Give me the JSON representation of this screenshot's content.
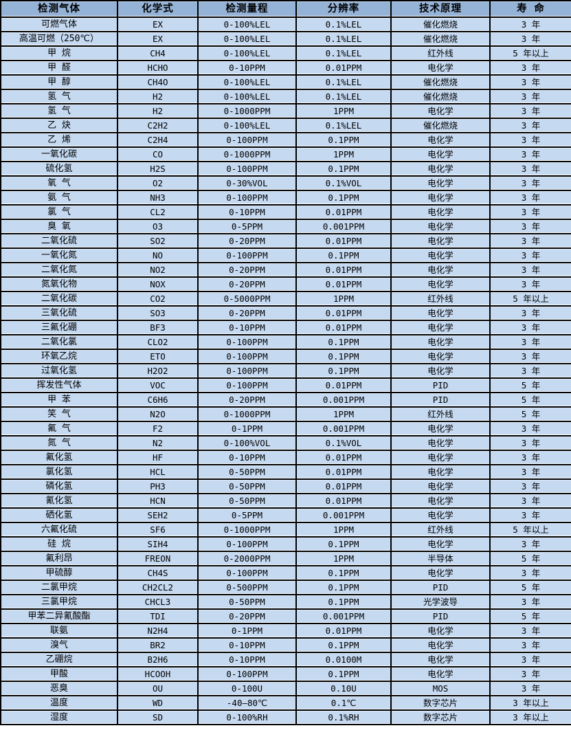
{
  "colors": {
    "header_bg": "#95B3D7",
    "row_bg": "#C5D9F1",
    "border": "#000000",
    "text": "#000000"
  },
  "table": {
    "columns": [
      "检测气体",
      "化学式",
      "检测量程",
      "分辨率",
      "技术原理",
      "寿 命"
    ],
    "rows": [
      [
        "可燃气体",
        "EX",
        "0-100%LEL",
        "0.1%LEL",
        "催化燃烧",
        "3 年"
      ],
      [
        "高温可燃（250℃）",
        "EX",
        "0-100%LEL",
        "0.1%LEL",
        "催化燃烧",
        "3 年"
      ],
      [
        "甲 烷",
        "CH4",
        "0-100%LEL",
        "0.1%LEL",
        "红外线",
        "5 年以上"
      ],
      [
        "甲 醛",
        "HCHO",
        "0-10PPM",
        "0.01PPM",
        "电化学",
        "3 年"
      ],
      [
        "甲 醇",
        "CH4O",
        "0-100%LEL",
        "0.1%LEL",
        "催化燃烧",
        "3 年"
      ],
      [
        "氢 气",
        "H2",
        "0-100%LEL",
        "0.1%LEL",
        "催化燃烧",
        "3 年"
      ],
      [
        "氢 气",
        "H2",
        "0-1000PPM",
        "1PPM",
        "电化学",
        "3 年"
      ],
      [
        "乙 炔",
        "C2H2",
        "0-100%LEL",
        "0.1%LEL",
        "催化燃烧",
        "3 年"
      ],
      [
        "乙 烯",
        "C2H4",
        "0-100PPM",
        "0.1PPM",
        "电化学",
        "3 年"
      ],
      [
        "一氧化碳",
        "CO",
        "0-1000PPM",
        "1PPM",
        "电化学",
        "3 年"
      ],
      [
        "硫化氢",
        "H2S",
        "0-100PPM",
        "0.1PPM",
        "电化学",
        "3 年"
      ],
      [
        "氧 气",
        "O2",
        "0-30%VOL",
        "0.1%VOL",
        "电化学",
        "3 年"
      ],
      [
        "氨 气",
        "NH3",
        "0-100PPM",
        "0.1PPM",
        "电化学",
        "3 年"
      ],
      [
        "氯 气",
        "CL2",
        "0-10PPM",
        "0.01PPM",
        "电化学",
        "3 年"
      ],
      [
        "臭 氧",
        "O3",
        "0-5PPM",
        "0.001PPM",
        "电化学",
        "3 年"
      ],
      [
        "二氧化硫",
        "SO2",
        "0-20PPM",
        "0.01PPM",
        "电化学",
        "3 年"
      ],
      [
        "一氧化氮",
        "NO",
        "0-100PPM",
        "0.1PPM",
        "电化学",
        "3 年"
      ],
      [
        "二氧化氮",
        "NO2",
        "0-20PPM",
        "0.01PPM",
        "电化学",
        "3 年"
      ],
      [
        "氮氧化物",
        "NOX",
        "0-20PPM",
        "0.01PPM",
        "电化学",
        "3 年"
      ],
      [
        "二氧化碳",
        "CO2",
        "0-5000PPM",
        "1PPM",
        "红外线",
        "5 年以上"
      ],
      [
        "三氧化硫",
        "SO3",
        "0-20PPM",
        "0.01PPM",
        "电化学",
        "3 年"
      ],
      [
        "三氟化硼",
        "BF3",
        "0-10PPM",
        "0.01PPM",
        "电化学",
        "3 年"
      ],
      [
        "二氧化氯",
        "CLO2",
        "0-100PPM",
        "0.1PPM",
        "电化学",
        "3 年"
      ],
      [
        "环氧乙烷",
        "ETO",
        "0-100PPM",
        "0.1PPM",
        "电化学",
        "3 年"
      ],
      [
        "过氧化氢",
        "H2O2",
        "0-100PPM",
        "0.1PPM",
        "电化学",
        "3 年"
      ],
      [
        "挥发性气体",
        "VOC",
        "0-100PPM",
        "0.01PPM",
        "PID",
        "5 年"
      ],
      [
        "甲 苯",
        "C6H6",
        "0-20PPM",
        "0.001PPM",
        "PID",
        "5 年"
      ],
      [
        "笑 气",
        "N2O",
        "0-1000PPM",
        "1PPM",
        "红外线",
        "5 年"
      ],
      [
        "氟 气",
        "F2",
        "0-1PPM",
        "0.001PPM",
        "电化学",
        "3 年"
      ],
      [
        "氮 气",
        "N2",
        "0-100%VOL",
        "0.1%VOL",
        "电化学",
        "3 年"
      ],
      [
        "氟化氢",
        "HF",
        "0-10PPM",
        "0.01PPM",
        "电化学",
        "3 年"
      ],
      [
        "氯化氢",
        "HCL",
        "0-50PPM",
        "0.01PPM",
        "电化学",
        "3 年"
      ],
      [
        "磷化氢",
        "PH3",
        "0-50PPM",
        "0.01PPM",
        "电化学",
        "3 年"
      ],
      [
        "氰化氢",
        "HCN",
        "0-50PPM",
        "0.01PPM",
        "电化学",
        "3 年"
      ],
      [
        "硒化氢",
        "SEH2",
        "0-5PPM",
        "0.001PPM",
        "电化学",
        "3 年"
      ],
      [
        "六氟化硫",
        "SF6",
        "0-1000PPM",
        "1PPM",
        "红外线",
        "5 年以上"
      ],
      [
        "硅 烷",
        "SIH4",
        "0-100PPM",
        "0.1PPM",
        "电化学",
        "3 年"
      ],
      [
        "氟利昂",
        "FREON",
        "0-2000PPM",
        "1PPM",
        "半导体",
        "5 年"
      ],
      [
        "甲硫醇",
        "CH4S",
        "0-100PPM",
        "0.1PPM",
        "电化学",
        "3 年"
      ],
      [
        "二氯甲烷",
        "CH2CL2",
        "0-500PPM",
        "0.1PPM",
        "PID",
        "5 年"
      ],
      [
        "三氯甲烷",
        "CHCL3",
        "0-50PPM",
        "0.1PPM",
        "光学波导",
        "3 年"
      ],
      [
        "甲苯二异氰酸酯",
        "TDI",
        "0-20PPM",
        "0.001PPM",
        "PID",
        "5 年"
      ],
      [
        "联氨",
        "N2H4",
        "0-1PPM",
        "0.01PPM",
        "电化学",
        "3 年"
      ],
      [
        "溴气",
        "BR2",
        "0-10PPM",
        "0.1PPM",
        "电化学",
        "3 年"
      ],
      [
        "乙硼烷",
        "B2H6",
        "0-10PPM",
        "0.0100M",
        "电化学",
        "3 年"
      ],
      [
        "甲酸",
        "HCOOH",
        "0-100PPM",
        "0.1PPM",
        "电化学",
        "3 年"
      ],
      [
        "恶臭",
        "OU",
        "0-100U",
        "0.10U",
        "MOS",
        "3 年"
      ],
      [
        "温度",
        "WD",
        "-40—80℃",
        "0.1℃",
        "数字芯片",
        "3 年以上"
      ],
      [
        "湿度",
        "SD",
        "0-100%RH",
        "0.1%RH",
        "数字芯片",
        "3 年以上"
      ]
    ]
  }
}
